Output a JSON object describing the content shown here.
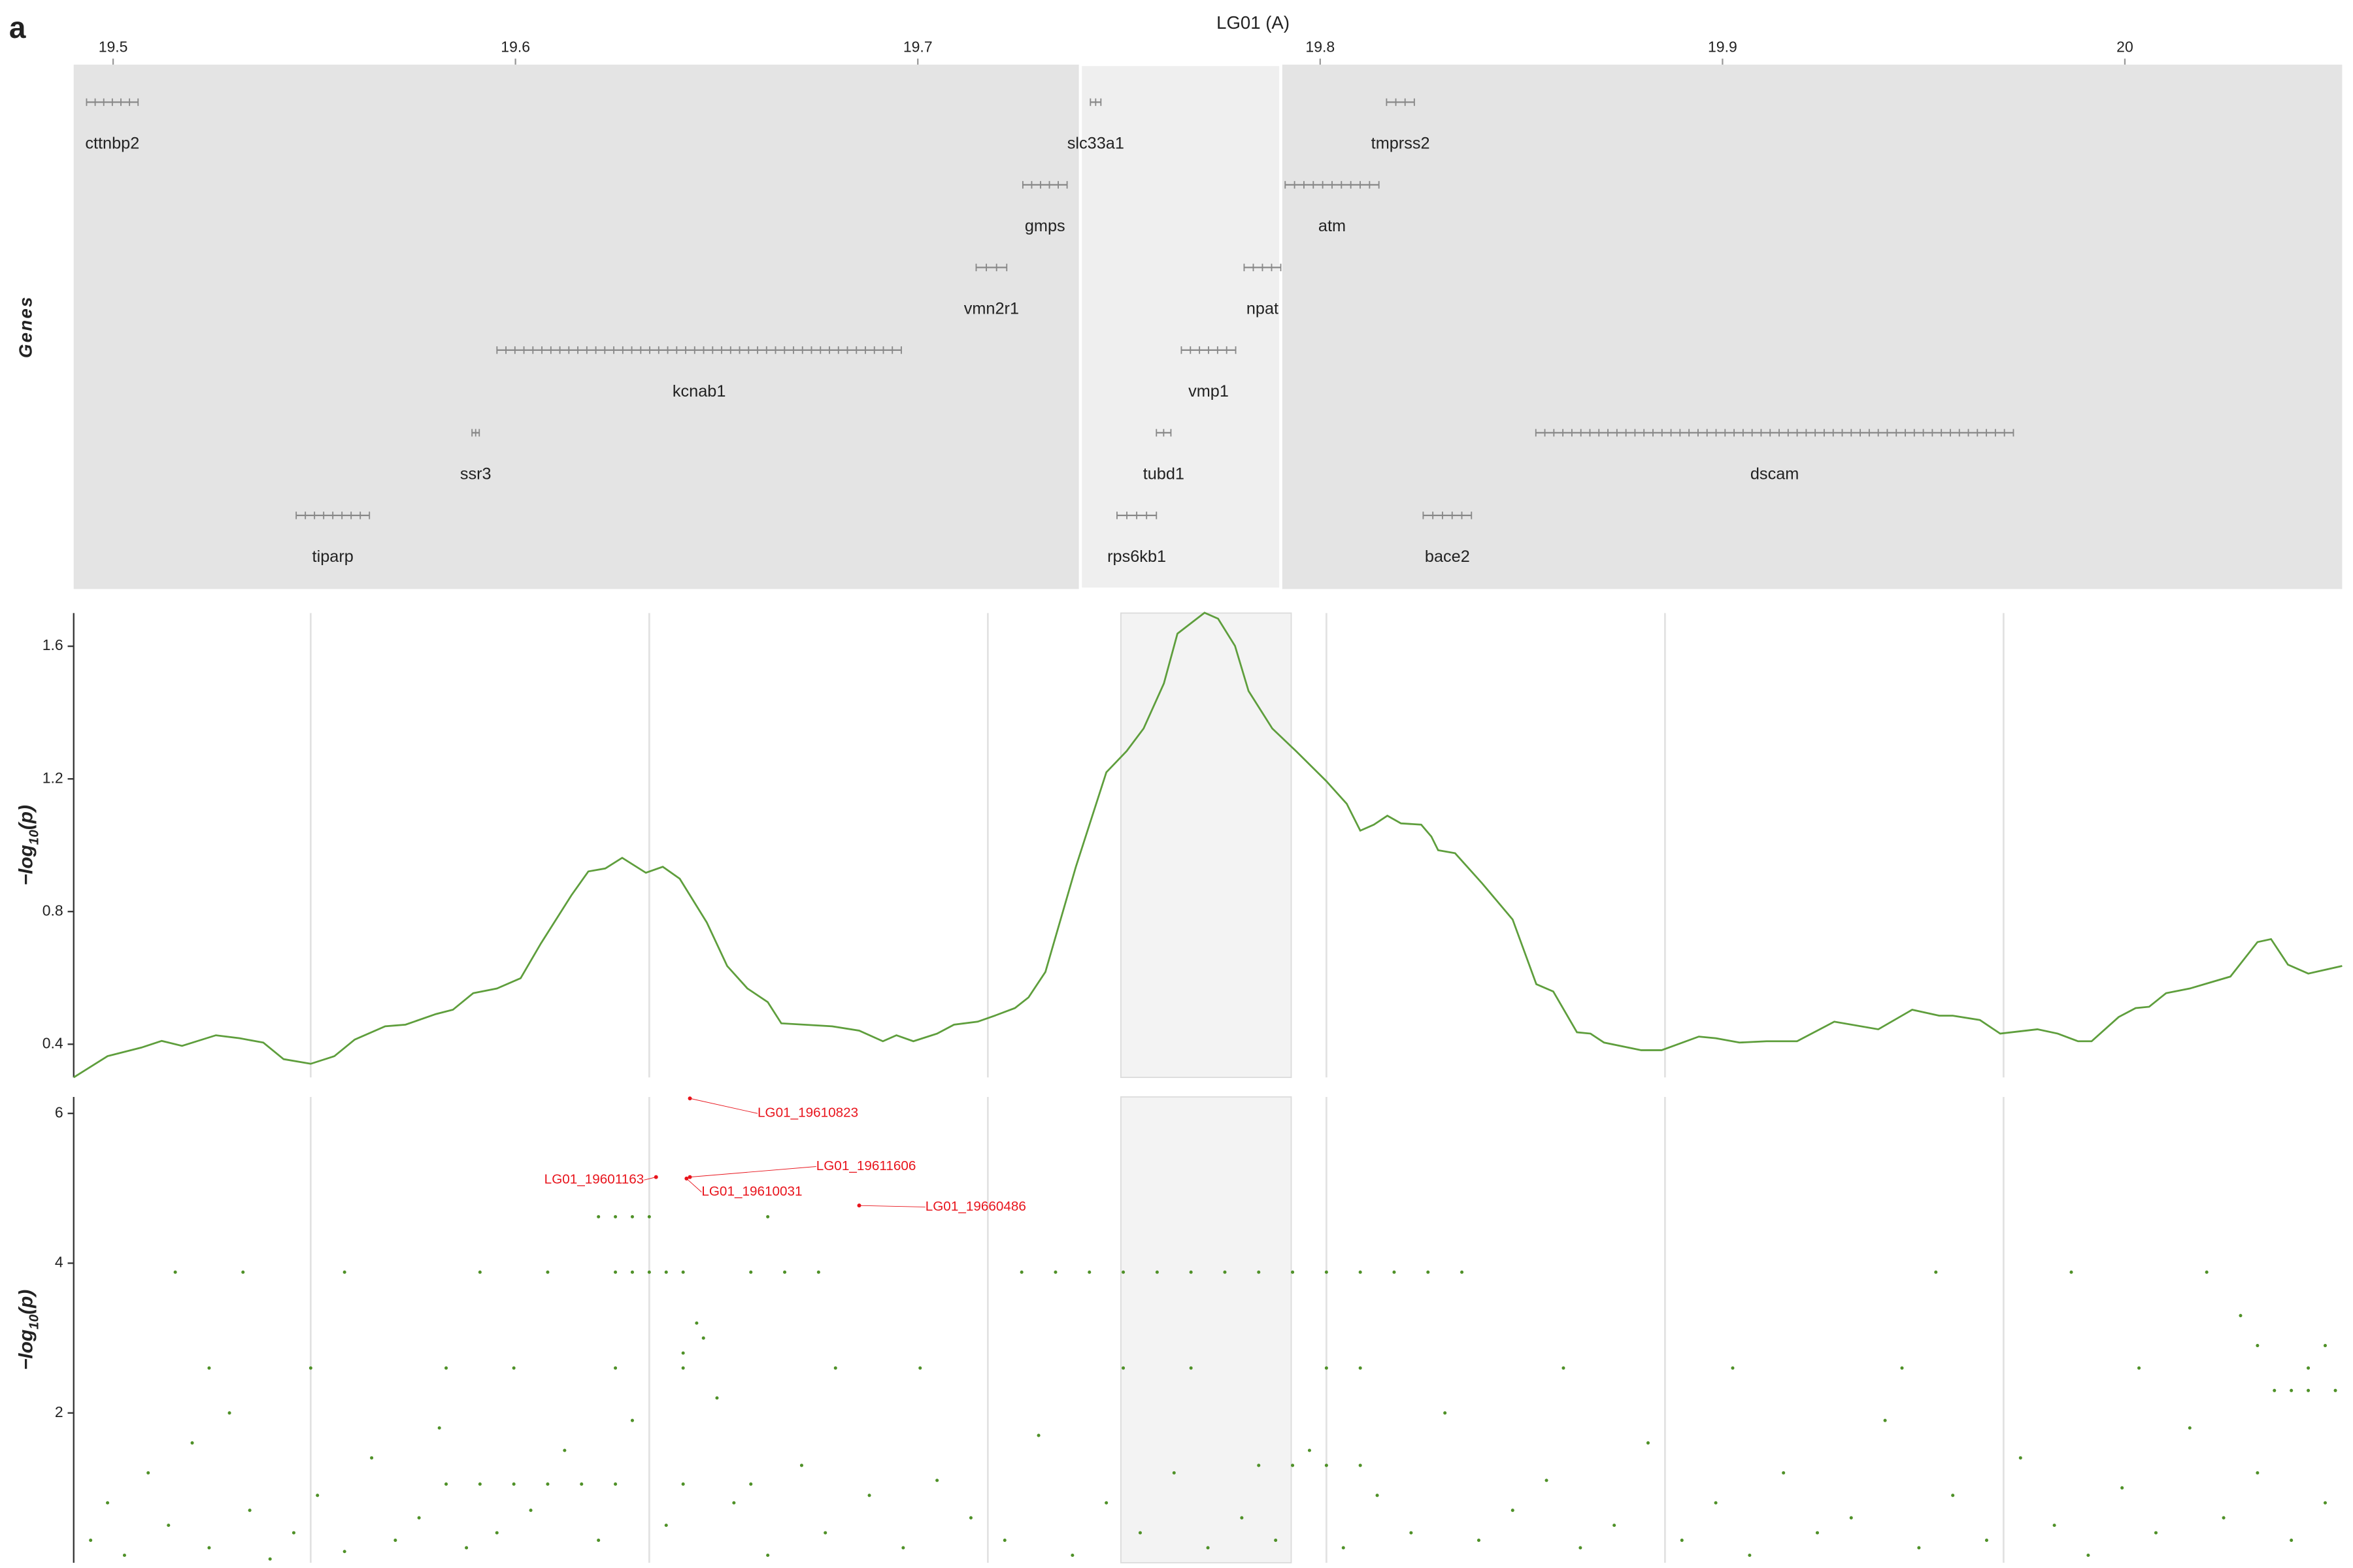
{
  "panel_label": "a",
  "chart_data": [
    {
      "type": "genes",
      "title": "LG01 (A)",
      "ylabel": "Genes",
      "xlim": [
        19.4902,
        20.054
      ],
      "xticks": [
        19.5,
        19.6,
        19.7,
        19.8,
        19.9,
        20
      ],
      "highlight": [
        19.7404,
        19.7902
      ],
      "color": "#888888",
      "rows": [
        [
          {
            "name": "cttnbp2",
            "start": 19.4934,
            "end": 19.5062
          },
          {
            "name": "slc33a1",
            "start": 19.7429,
            "end": 19.7455
          },
          {
            "name": "tmprss2",
            "start": 19.8165,
            "end": 19.8234
          }
        ],
        [
          {
            "name": "gmps",
            "start": 19.7261,
            "end": 19.7371
          },
          {
            "name": "atm",
            "start": 19.7913,
            "end": 19.8146
          }
        ],
        [
          {
            "name": "vmn2r1",
            "start": 19.7145,
            "end": 19.7221
          },
          {
            "name": "npat",
            "start": 19.7811,
            "end": 19.7902
          }
        ],
        [
          {
            "name": "kcnab1",
            "start": 19.5954,
            "end": 19.6959
          },
          {
            "name": "vmp1",
            "start": 19.7655,
            "end": 19.779
          }
        ],
        [
          {
            "name": "ssr3",
            "start": 19.5892,
            "end": 19.591
          },
          {
            "name": "tubd1",
            "start": 19.7593,
            "end": 19.7629
          },
          {
            "name": "dscam",
            "start": 19.8536,
            "end": 19.9723
          }
        ],
        [
          {
            "name": "tiparp",
            "start": 19.5455,
            "end": 19.5637
          },
          {
            "name": "rps6kb1",
            "start": 19.7495,
            "end": 19.7593
          },
          {
            "name": "bace2",
            "start": 19.8256,
            "end": 19.8376
          }
        ]
      ]
    },
    {
      "type": "line",
      "ylabel": {
        "pre": "−log",
        "sub": "10",
        "post": "(p)"
      },
      "xlim": [
        19.44,
        20.11
      ],
      "xgrid": [
        19.51,
        19.61,
        19.71,
        19.81,
        19.91,
        20.01
      ],
      "ylim": [
        0.3,
        1.7
      ],
      "yticks": [
        0.4,
        0.8,
        1.2,
        1.6
      ],
      "highlight": [
        19.7493,
        19.7996
      ],
      "color": "#5e9e3c",
      "x": [
        19.44,
        19.45,
        19.46,
        19.466,
        19.472,
        19.482,
        19.489,
        19.496,
        19.502,
        19.51,
        19.517,
        19.523,
        19.532,
        19.538,
        19.547,
        19.552,
        19.558,
        19.565,
        19.572,
        19.578,
        19.587,
        19.592,
        19.597,
        19.602,
        19.609,
        19.614,
        19.619,
        19.627,
        19.633,
        19.639,
        19.645,
        19.649,
        19.664,
        19.672,
        19.679,
        19.683,
        19.688,
        19.695,
        19.7,
        19.707,
        19.712,
        19.718,
        19.722,
        19.727,
        19.736,
        19.745,
        19.751,
        19.756,
        19.762,
        19.766,
        19.774,
        19.778,
        19.783,
        19.787,
        19.794,
        19.801,
        19.81,
        19.816,
        19.82,
        19.824,
        19.828,
        19.832,
        19.838,
        19.841,
        19.843,
        19.848,
        19.856,
        19.865,
        19.872,
        19.877,
        19.884,
        19.888,
        19.892,
        19.903,
        19.909,
        19.92,
        19.925,
        19.932,
        19.94,
        19.949,
        19.96,
        19.973,
        19.983,
        19.991,
        19.995,
        20.003,
        20.009,
        20.02,
        20.026,
        20.032,
        20.036,
        20.044,
        20.049,
        20.053,
        20.058,
        20.065,
        20.071,
        20.077,
        20.085,
        20.089,
        20.094,
        20.1,
        20.11
      ],
      "values": [
        0.3,
        0.364,
        0.39,
        0.41,
        0.395,
        0.427,
        0.418,
        0.405,
        0.355,
        0.341,
        0.364,
        0.414,
        0.454,
        0.459,
        0.491,
        0.504,
        0.554,
        0.568,
        0.599,
        0.704,
        0.849,
        0.921,
        0.93,
        0.962,
        0.917,
        0.935,
        0.899,
        0.767,
        0.636,
        0.568,
        0.527,
        0.463,
        0.454,
        0.441,
        0.409,
        0.427,
        0.409,
        0.432,
        0.459,
        0.468,
        0.486,
        0.509,
        0.541,
        0.618,
        0.935,
        1.22,
        1.284,
        1.352,
        1.488,
        1.638,
        1.701,
        1.683,
        1.601,
        1.465,
        1.352,
        1.284,
        1.193,
        1.125,
        1.044,
        1.062,
        1.089,
        1.066,
        1.062,
        1.026,
        0.985,
        0.976,
        0.885,
        0.776,
        0.581,
        0.559,
        0.436,
        0.432,
        0.405,
        0.382,
        0.382,
        0.423,
        0.418,
        0.405,
        0.409,
        0.409,
        0.468,
        0.445,
        0.504,
        0.486,
        0.486,
        0.473,
        0.432,
        0.445,
        0.432,
        0.409,
        0.409,
        0.482,
        0.509,
        0.513,
        0.554,
        0.568,
        0.586,
        0.604,
        0.708,
        0.717,
        0.64,
        0.613,
        0.636
      ]
    },
    {
      "type": "scatter",
      "ylabel": {
        "pre": "−log",
        "sub": "10",
        "post": "(p)"
      },
      "xlim": [
        19.44,
        20.11
      ],
      "xgrid": [
        19.51,
        19.61,
        19.71,
        19.81,
        19.91,
        20.01
      ],
      "ylim": [
        0,
        6.22
      ],
      "yticks": [
        2,
        4,
        6
      ],
      "highlight": [
        19.7493,
        19.7996
      ],
      "color": "#4f9128",
      "annotation_color": "#e8141c",
      "x": [
        19.6,
        19.605,
        19.61,
        19.615,
        19.62,
        19.64,
        19.65,
        19.66,
        19.72,
        19.73,
        19.74,
        19.75,
        19.76,
        19.77,
        19.78,
        19.79,
        19.8,
        19.81,
        19.82,
        19.83,
        19.84,
        19.85,
        19.47,
        19.49,
        19.52,
        19.56,
        19.58,
        19.99,
        20.03,
        20.07,
        19.595,
        19.6,
        19.605,
        19.61,
        19.645,
        19.48,
        19.51,
        19.55,
        19.57,
        19.6,
        19.62,
        19.665,
        19.69,
        19.75,
        19.77,
        19.81,
        19.82,
        19.88,
        19.93,
        19.98,
        20.05,
        20.1,
        19.624,
        19.626,
        19.62,
        20.08,
        20.085,
        20.105,
        20.09,
        20.095,
        20.1,
        20.108,
        19.55,
        19.56,
        19.57,
        19.58,
        19.59,
        19.6,
        19.62,
        19.64,
        19.79,
        19.8,
        19.81,
        19.82,
        19.445,
        19.45,
        19.455,
        19.462,
        19.468,
        19.475,
        19.48,
        19.486,
        19.492,
        19.498,
        19.505,
        19.512,
        19.52,
        19.528,
        19.535,
        19.542,
        19.548,
        19.556,
        19.565,
        19.575,
        19.585,
        19.595,
        19.605,
        19.615,
        19.63,
        19.635,
        19.645,
        19.655,
        19.662,
        19.675,
        19.685,
        19.695,
        19.705,
        19.715,
        19.725,
        19.735,
        19.745,
        19.755,
        19.765,
        19.775,
        19.785,
        19.795,
        19.805,
        19.815,
        19.825,
        19.835,
        19.845,
        19.855,
        19.865,
        19.875,
        19.885,
        19.895,
        19.905,
        19.915,
        19.925,
        19.935,
        19.945,
        19.955,
        19.965,
        19.975,
        19.985,
        19.995,
        20.005,
        20.015,
        20.025,
        20.035,
        20.045,
        20.055,
        20.065,
        20.075,
        20.085,
        20.095,
        20.105
      ],
      "values": [
        3.88,
        3.88,
        3.88,
        3.88,
        3.88,
        3.88,
        3.88,
        3.88,
        3.88,
        3.88,
        3.88,
        3.88,
        3.88,
        3.88,
        3.88,
        3.88,
        3.88,
        3.88,
        3.88,
        3.88,
        3.88,
        3.88,
        3.88,
        3.88,
        3.88,
        3.88,
        3.88,
        3.88,
        3.88,
        3.88,
        4.62,
        4.62,
        4.62,
        4.62,
        4.62,
        2.6,
        2.6,
        2.6,
        2.6,
        2.6,
        2.6,
        2.6,
        2.6,
        2.6,
        2.6,
        2.6,
        2.6,
        2.6,
        2.6,
        2.6,
        2.6,
        2.6,
        3.2,
        3.0,
        2.8,
        3.3,
        2.9,
        2.9,
        2.3,
        2.3,
        2.3,
        2.3,
        1.05,
        1.05,
        1.05,
        1.05,
        1.05,
        1.05,
        1.05,
        1.05,
        1.3,
        1.3,
        1.3,
        1.3,
        0.3,
        0.8,
        0.1,
        1.2,
        0.5,
        1.6,
        0.2,
        2.0,
        0.7,
        0.05,
        0.4,
        0.9,
        0.15,
        1.4,
        0.3,
        0.6,
        1.8,
        0.2,
        0.4,
        0.7,
        1.5,
        0.3,
        1.9,
        0.5,
        2.2,
        0.8,
        0.1,
        1.3,
        0.4,
        0.9,
        0.2,
        1.1,
        0.6,
        0.3,
        1.7,
        0.1,
        0.8,
        0.4,
        1.2,
        0.2,
        0.6,
        0.3,
        1.5,
        0.2,
        0.9,
        0.4,
        2.0,
        0.3,
        0.7,
        1.1,
        0.2,
        0.5,
        1.6,
        0.3,
        0.8,
        0.1,
        1.2,
        0.4,
        0.6,
        1.9,
        0.2,
        0.9,
        0.3,
        1.4,
        0.5,
        0.1,
        1.0,
        0.4,
        1.8,
        0.6,
        1.2,
        0.3,
        0.8
      ],
      "annotations": [
        {
          "label": "LG01_19610823",
          "x": 19.622,
          "y": 6.2
        },
        {
          "label": "LG01_19601163",
          "x": 19.612,
          "y": 5.15
        },
        {
          "label": "LG01_19611606",
          "x": 19.622,
          "y": 5.15
        },
        {
          "label": "LG01_19610031",
          "x": 19.621,
          "y": 5.13
        },
        {
          "label": "LG01_19660486",
          "x": 19.672,
          "y": 4.77
        }
      ]
    }
  ]
}
